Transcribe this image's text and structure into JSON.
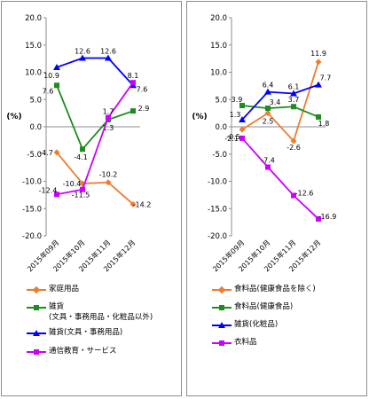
{
  "chart_data": [
    {
      "type": "line",
      "ylabel": "(%)",
      "ylim": [
        -20,
        20
      ],
      "yticks": [
        "20.0",
        "15.0",
        "10.0",
        "5.0",
        "0.0",
        "-5.0",
        "-10.0",
        "-15.0",
        "-20.0"
      ],
      "categories": [
        "2015年09月",
        "2015年10月",
        "2015年11月",
        "2015年12月"
      ],
      "grid": false,
      "legend_position": "bottom",
      "series": [
        {
          "name": "家庭用品",
          "color": "#ED7D31",
          "marker": "diamond",
          "values": [
            -4.7,
            -10.4,
            -10.2,
            -14.2
          ]
        },
        {
          "name": "雑貨\n(文具・事務用品・化粧品以外)",
          "color": "#1E8C1E",
          "marker": "square",
          "values": [
            7.6,
            -4.1,
            1.3,
            2.9
          ]
        },
        {
          "name": "雑貨(文具・事務用品)",
          "color": "#0000FF",
          "marker": "triangle",
          "values": [
            10.9,
            12.6,
            12.6,
            7.6
          ]
        },
        {
          "name": "通信教育・サービス",
          "color": "#CC00FF",
          "marker": "square",
          "values": [
            -12.4,
            -11.5,
            1.7,
            8.1
          ]
        }
      ]
    },
    {
      "type": "line",
      "ylabel": "(%)",
      "ylim": [
        -20,
        20
      ],
      "yticks": [
        "20.0",
        "15.0",
        "10.0",
        "5.0",
        "0.0",
        "-5.0",
        "-10.0",
        "-15.0",
        "-20.0"
      ],
      "categories": [
        "2015年09月",
        "2015年10月",
        "2015年11月",
        "2015年12月"
      ],
      "grid": false,
      "legend_position": "bottom",
      "series": [
        {
          "name": "食料品(健康食品を除く)",
          "color": "#ED7D31",
          "marker": "diamond",
          "values": [
            -0.5,
            2.5,
            -2.6,
            11.9
          ]
        },
        {
          "name": "食料品(健康食品)",
          "color": "#1E8C1E",
          "marker": "square",
          "values": [
            3.9,
            3.4,
            3.7,
            1.8
          ]
        },
        {
          "name": "雑貨(化粧品)",
          "color": "#0000FF",
          "marker": "triangle",
          "values": [
            1.3,
            6.4,
            6.1,
            7.7
          ]
        },
        {
          "name": "衣料品",
          "color": "#CC00FF",
          "marker": "square",
          "values": [
            -2.1,
            -7.4,
            -12.6,
            -16.9
          ]
        }
      ]
    }
  ]
}
